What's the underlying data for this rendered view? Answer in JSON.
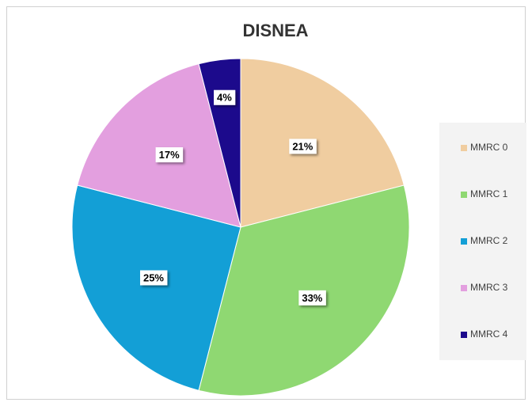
{
  "chart_data": {
    "type": "pie",
    "title": "DISNEA",
    "categories": [
      "MMRC 0",
      "MMRC 1",
      "MMRC 2",
      "MMRC 3",
      "MMRC 4"
    ],
    "values": [
      21,
      33,
      25,
      17,
      4
    ],
    "value_labels": [
      "21%",
      "33%",
      "25%",
      "17%",
      "4%"
    ],
    "colors": [
      "#f0cda0",
      "#8fd872",
      "#139fd6",
      "#e39fdf",
      "#1c0a8c"
    ],
    "legend": "right"
  }
}
